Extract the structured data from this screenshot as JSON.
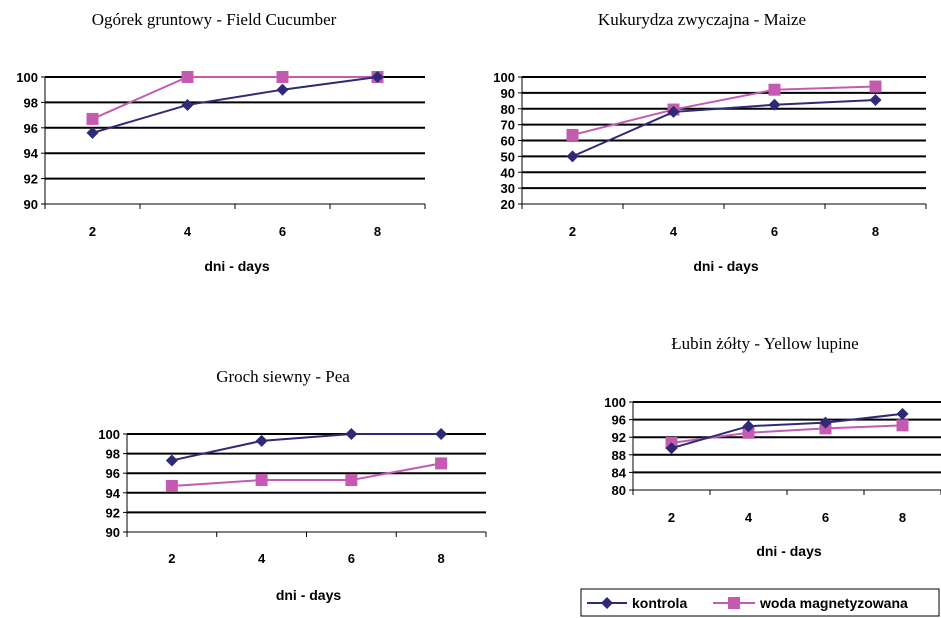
{
  "legend": {
    "items": [
      {
        "name": "kontrola",
        "color": "#2e2a78",
        "marker": "diamond"
      },
      {
        "name": "woda magnetyzowana",
        "color": "#c45bb0",
        "marker": "square"
      }
    ]
  },
  "chart_data": [
    {
      "type": "line",
      "title": "Ogórek gruntowy - Field Cucumber",
      "xlabel": "dni - days",
      "ylabel": "",
      "categories": [
        "2",
        "4",
        "6",
        "8"
      ],
      "ylim": [
        90,
        100
      ],
      "yticks": [
        90,
        92,
        94,
        96,
        98,
        100
      ],
      "grid": true,
      "series": [
        {
          "name": "kontrola",
          "values": [
            95.6,
            97.8,
            99,
            100
          ]
        },
        {
          "name": "woda magnetyzowana",
          "values": [
            96.7,
            100,
            100,
            100
          ]
        }
      ]
    },
    {
      "type": "line",
      "title": "Kukurydza zwyczajna - Maize",
      "xlabel": "dni - days",
      "ylabel": "",
      "categories": [
        "2",
        "4",
        "6",
        "8"
      ],
      "ylim": [
        20,
        100
      ],
      "yticks": [
        20,
        30,
        40,
        50,
        60,
        70,
        80,
        90,
        100
      ],
      "grid": true,
      "series": [
        {
          "name": "kontrola",
          "values": [
            50,
            78,
            82.5,
            85.5
          ]
        },
        {
          "name": "woda magnetyzowana",
          "values": [
            63.5,
            79.5,
            92,
            94
          ]
        }
      ]
    },
    {
      "type": "line",
      "title": "Groch siewny - Pea",
      "xlabel": "dni - days",
      "ylabel": "",
      "categories": [
        "2",
        "4",
        "6",
        "8"
      ],
      "ylim": [
        90,
        100
      ],
      "yticks": [
        90,
        92,
        94,
        96,
        98,
        100
      ],
      "grid": true,
      "series": [
        {
          "name": "kontrola",
          "values": [
            97.3,
            99.3,
            100,
            100
          ]
        },
        {
          "name": "woda magnetyzowana",
          "values": [
            94.7,
            95.3,
            95.3,
            97
          ]
        }
      ]
    },
    {
      "type": "line",
      "title": "Łubin żółty - Yellow lupine",
      "xlabel": "dni - days",
      "ylabel": "",
      "categories": [
        "2",
        "4",
        "6",
        "8"
      ],
      "ylim": [
        80,
        100
      ],
      "yticks": [
        80,
        84,
        88,
        92,
        96,
        100
      ],
      "grid": true,
      "series": [
        {
          "name": "kontrola",
          "values": [
            89.5,
            94.5,
            95.3,
            97.3
          ]
        },
        {
          "name": "woda magnetyzowana",
          "values": [
            90.7,
            93,
            94,
            94.7
          ]
        }
      ]
    }
  ]
}
